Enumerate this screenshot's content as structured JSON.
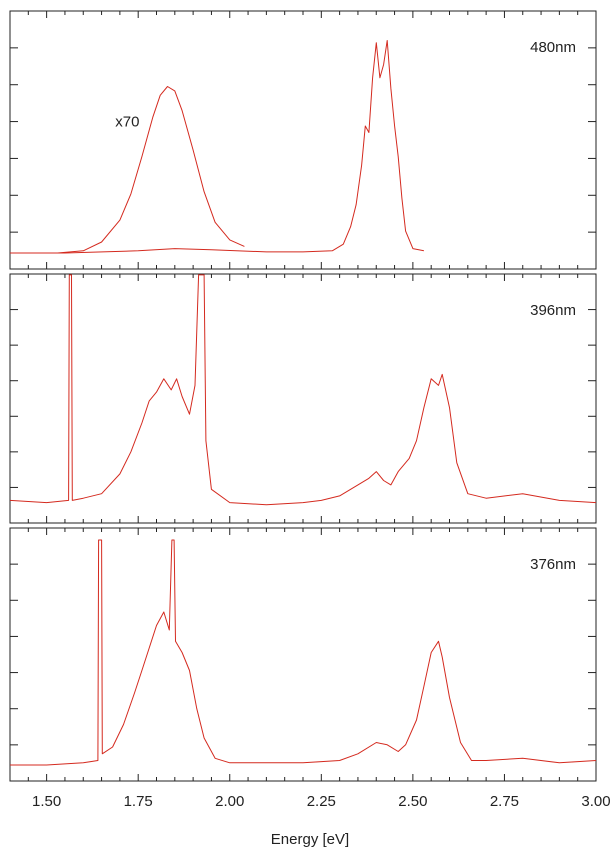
{
  "chart_data": {
    "type": "line",
    "x_axis": {
      "label": "Energy [eV]",
      "range": [
        1.4,
        3.0
      ],
      "ticks": [
        1.5,
        1.75,
        2.0,
        2.25,
        2.5,
        2.75,
        3.0
      ],
      "tick_labels": [
        "1.50",
        "1.75",
        "2.00",
        "2.25",
        "2.50",
        "2.75",
        "3.00"
      ]
    },
    "line_color": "#d42a1f",
    "y_tick_labels_shown": false,
    "grid": false,
    "panels": [
      {
        "label": "480nm",
        "y_range": [
          0,
          1.05
        ],
        "series": [
          {
            "annotation": "",
            "points": [
              [
                1.4,
                0.0
              ],
              [
                1.55,
                0.0
              ],
              [
                1.75,
                0.01
              ],
              [
                1.85,
                0.02
              ],
              [
                1.95,
                0.015
              ],
              [
                2.1,
                0.005
              ],
              [
                2.2,
                0.005
              ],
              [
                2.28,
                0.01
              ],
              [
                2.31,
                0.04
              ],
              [
                2.33,
                0.12
              ],
              [
                2.345,
                0.22
              ],
              [
                2.36,
                0.4
              ],
              [
                2.37,
                0.58
              ],
              [
                2.38,
                0.55
              ],
              [
                2.39,
                0.8
              ],
              [
                2.4,
                0.96
              ],
              [
                2.41,
                0.8
              ],
              [
                2.42,
                0.86
              ],
              [
                2.43,
                0.97
              ],
              [
                2.44,
                0.75
              ],
              [
                2.45,
                0.58
              ],
              [
                2.46,
                0.44
              ],
              [
                2.47,
                0.25
              ],
              [
                2.48,
                0.1
              ],
              [
                2.5,
                0.02
              ],
              [
                2.53,
                0.01
              ]
            ]
          },
          {
            "annotation": "x70",
            "points": [
              [
                1.53,
                0.0
              ],
              [
                1.6,
                0.01
              ],
              [
                1.65,
                0.05
              ],
              [
                1.7,
                0.15
              ],
              [
                1.73,
                0.27
              ],
              [
                1.76,
                0.44
              ],
              [
                1.79,
                0.62
              ],
              [
                1.81,
                0.72
              ],
              [
                1.83,
                0.76
              ],
              [
                1.85,
                0.74
              ],
              [
                1.87,
                0.65
              ],
              [
                1.9,
                0.47
              ],
              [
                1.93,
                0.28
              ],
              [
                1.96,
                0.14
              ],
              [
                2.0,
                0.06
              ],
              [
                2.04,
                0.03
              ]
            ]
          }
        ]
      },
      {
        "label": "396nm",
        "y_range": [
          0,
          1.0
        ],
        "series": [
          {
            "annotation": "",
            "points": [
              [
                1.4,
                0.03
              ],
              [
                1.5,
                0.02
              ],
              [
                1.56,
                0.03
              ],
              [
                1.562,
                1.05
              ],
              [
                1.568,
                1.05
              ],
              [
                1.57,
                0.03
              ],
              [
                1.6,
                0.04
              ],
              [
                1.65,
                0.06
              ],
              [
                1.7,
                0.15
              ],
              [
                1.73,
                0.25
              ],
              [
                1.76,
                0.38
              ],
              [
                1.78,
                0.48
              ],
              [
                1.8,
                0.52
              ],
              [
                1.82,
                0.58
              ],
              [
                1.84,
                0.53
              ],
              [
                1.855,
                0.58
              ],
              [
                1.87,
                0.5
              ],
              [
                1.89,
                0.42
              ],
              [
                1.905,
                0.55
              ],
              [
                1.915,
                1.05
              ],
              [
                1.93,
                1.05
              ],
              [
                1.935,
                0.3
              ],
              [
                1.95,
                0.08
              ],
              [
                2.0,
                0.02
              ],
              [
                2.1,
                0.01
              ],
              [
                2.2,
                0.02
              ],
              [
                2.25,
                0.03
              ],
              [
                2.3,
                0.05
              ],
              [
                2.35,
                0.1
              ],
              [
                2.38,
                0.13
              ],
              [
                2.4,
                0.16
              ],
              [
                2.42,
                0.12
              ],
              [
                2.44,
                0.1
              ],
              [
                2.46,
                0.16
              ],
              [
                2.49,
                0.22
              ],
              [
                2.51,
                0.3
              ],
              [
                2.53,
                0.45
              ],
              [
                2.55,
                0.58
              ],
              [
                2.57,
                0.55
              ],
              [
                2.58,
                0.6
              ],
              [
                2.6,
                0.45
              ],
              [
                2.62,
                0.2
              ],
              [
                2.65,
                0.06
              ],
              [
                2.7,
                0.04
              ],
              [
                2.8,
                0.06
              ],
              [
                2.9,
                0.03
              ],
              [
                3.0,
                0.02
              ]
            ]
          }
        ]
      },
      {
        "label": "376nm",
        "y_range": [
          0,
          1.0
        ],
        "series": [
          {
            "annotation": "",
            "points": [
              [
                1.4,
                0.0
              ],
              [
                1.5,
                0.0
              ],
              [
                1.6,
                0.01
              ],
              [
                1.64,
                0.02
              ],
              [
                1.642,
                1.0
              ],
              [
                1.65,
                1.0
              ],
              [
                1.652,
                0.05
              ],
              [
                1.68,
                0.08
              ],
              [
                1.71,
                0.18
              ],
              [
                1.74,
                0.32
              ],
              [
                1.76,
                0.42
              ],
              [
                1.78,
                0.52
              ],
              [
                1.8,
                0.62
              ],
              [
                1.82,
                0.68
              ],
              [
                1.835,
                0.6
              ],
              [
                1.842,
                1.0
              ],
              [
                1.848,
                1.0
              ],
              [
                1.852,
                0.55
              ],
              [
                1.87,
                0.5
              ],
              [
                1.89,
                0.42
              ],
              [
                1.91,
                0.25
              ],
              [
                1.93,
                0.12
              ],
              [
                1.96,
                0.03
              ],
              [
                2.0,
                0.01
              ],
              [
                2.2,
                0.01
              ],
              [
                2.3,
                0.02
              ],
              [
                2.35,
                0.05
              ],
              [
                2.4,
                0.1
              ],
              [
                2.43,
                0.09
              ],
              [
                2.46,
                0.06
              ],
              [
                2.48,
                0.09
              ],
              [
                2.51,
                0.2
              ],
              [
                2.53,
                0.35
              ],
              [
                2.55,
                0.5
              ],
              [
                2.57,
                0.55
              ],
              [
                2.58,
                0.48
              ],
              [
                2.6,
                0.3
              ],
              [
                2.63,
                0.1
              ],
              [
                2.66,
                0.02
              ],
              [
                2.7,
                0.02
              ],
              [
                2.8,
                0.03
              ],
              [
                2.9,
                0.01
              ],
              [
                3.0,
                0.02
              ]
            ]
          }
        ]
      }
    ]
  }
}
